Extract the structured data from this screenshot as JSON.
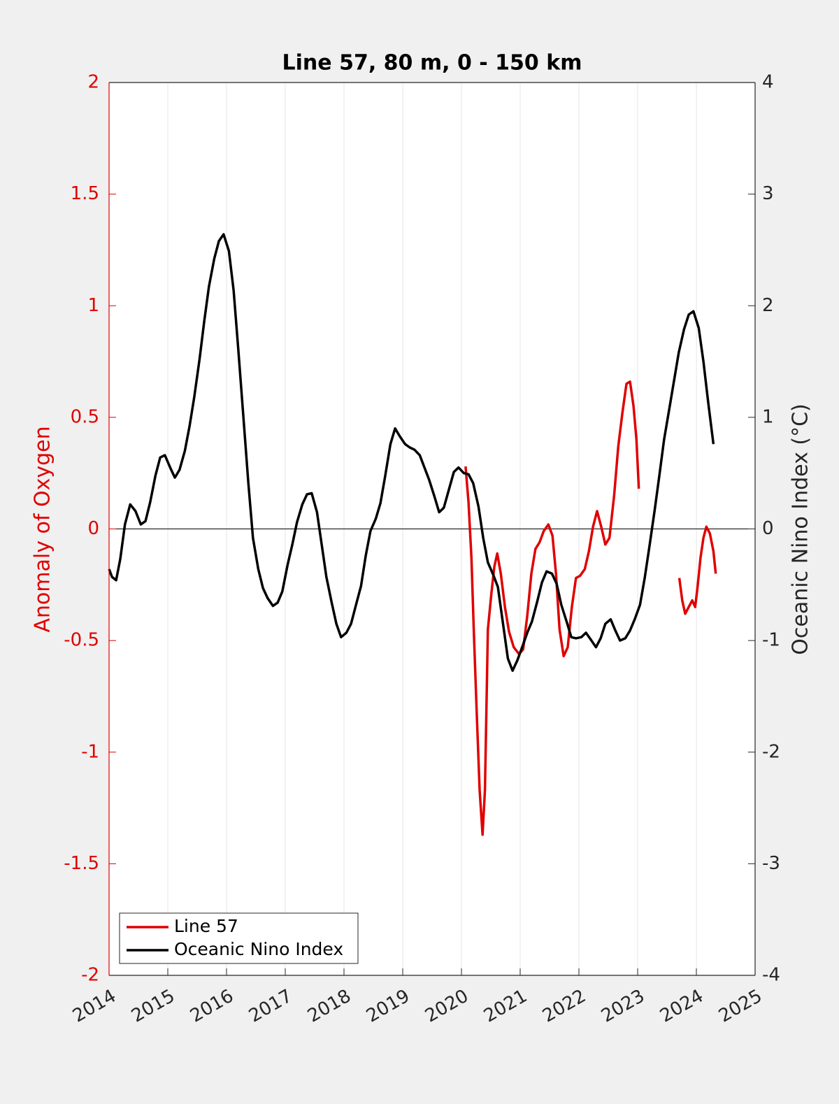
{
  "chart_data": {
    "type": "line",
    "title": "Line 57, 80 m, 0 - 150 km",
    "ylabel": "Anomaly of Oxygen",
    "y2label": "Oceanic Nino Index (°C)",
    "xlim": [
      2014,
      2025
    ],
    "xticks": [
      2014,
      2015,
      2016,
      2017,
      2018,
      2019,
      2020,
      2021,
      2022,
      2023,
      2024,
      2025
    ],
    "ylim": [
      -2,
      2
    ],
    "yticks": [
      -2,
      -1.5,
      -1,
      -0.5,
      0,
      0.5,
      1,
      1.5,
      2
    ],
    "y2lim": [
      -4,
      4
    ],
    "y2ticks": [
      -4,
      -3,
      -2,
      -1,
      0,
      1,
      2,
      3,
      4
    ],
    "grid": "x",
    "zero_line": true,
    "ylabel_color": "#e00000",
    "legend": "lower left",
    "series": [
      {
        "name": "Line 57",
        "color": "#e00000",
        "axis": "y",
        "x": [
          2020.07,
          2020.12,
          2020.17,
          2020.21,
          2020.26,
          2020.31,
          2020.36,
          2020.4,
          2020.45,
          2020.51,
          2020.56,
          2020.61,
          2020.67,
          2020.74,
          2020.81,
          2020.89,
          2020.98,
          2021.05,
          2021.12,
          2021.19,
          2021.26,
          2021.33,
          2021.4,
          2021.48,
          2021.55,
          2021.61,
          2021.67,
          2021.74,
          2021.81,
          2021.88,
          2021.95,
          2022.02,
          2022.1,
          2022.17,
          2022.24,
          2022.31,
          2022.38,
          2022.45,
          2022.52,
          2022.6,
          2022.67,
          2022.74,
          2022.81,
          2022.87,
          2022.93,
          2022.98,
          2023.02,
          2023.4,
          2023.71,
          2023.76,
          2023.81,
          2023.87,
          2023.93,
          2023.98,
          2024.02,
          2024.07,
          2024.12,
          2024.17,
          2024.23,
          2024.29,
          2024.33
        ],
        "values": [
          0.28,
          0.12,
          -0.13,
          -0.45,
          -0.82,
          -1.17,
          -1.37,
          -1.17,
          -0.45,
          -0.29,
          -0.17,
          -0.11,
          -0.2,
          -0.35,
          -0.46,
          -0.53,
          -0.56,
          -0.54,
          -0.39,
          -0.2,
          -0.09,
          -0.06,
          -0.01,
          0.02,
          -0.03,
          -0.2,
          -0.45,
          -0.57,
          -0.53,
          -0.35,
          -0.22,
          -0.21,
          -0.18,
          -0.1,
          0.01,
          0.08,
          0.01,
          -0.07,
          -0.04,
          0.15,
          0.37,
          0.52,
          0.65,
          0.66,
          0.55,
          0.4,
          0.18,
          null,
          -0.22,
          -0.32,
          -0.38,
          -0.35,
          -0.32,
          -0.35,
          -0.26,
          -0.13,
          -0.04,
          0.01,
          -0.02,
          -0.1,
          -0.2
        ]
      },
      {
        "name": "Oceanic Nino Index",
        "color": "#000000",
        "axis": "y2",
        "x": [
          2014.0,
          2014.05,
          2014.12,
          2014.19,
          2014.27,
          2014.36,
          2014.45,
          2014.54,
          2014.62,
          2014.7,
          2014.79,
          2014.87,
          2014.95,
          2015.04,
          2015.12,
          2015.2,
          2015.29,
          2015.37,
          2015.45,
          2015.54,
          2015.62,
          2015.7,
          2015.79,
          2015.87,
          2015.95,
          2016.04,
          2016.12,
          2016.2,
          2016.29,
          2016.37,
          2016.45,
          2016.54,
          2016.62,
          2016.7,
          2016.79,
          2016.87,
          2016.95,
          2017.04,
          2017.12,
          2017.2,
          2017.29,
          2017.37,
          2017.45,
          2017.54,
          2017.62,
          2017.7,
          2017.79,
          2017.87,
          2017.95,
          2018.04,
          2018.12,
          2018.2,
          2018.29,
          2018.37,
          2018.45,
          2018.54,
          2018.62,
          2018.7,
          2018.79,
          2018.87,
          2018.95,
          2019.04,
          2019.12,
          2019.2,
          2019.29,
          2019.37,
          2019.45,
          2019.54,
          2019.62,
          2019.7,
          2019.79,
          2019.87,
          2019.95,
          2020.04,
          2020.12,
          2020.2,
          2020.29,
          2020.37,
          2020.45,
          2020.54,
          2020.62,
          2020.7,
          2020.79,
          2020.87,
          2020.95,
          2021.04,
          2021.12,
          2021.2,
          2021.29,
          2021.37,
          2021.45,
          2021.54,
          2021.62,
          2021.7,
          2021.79,
          2021.87,
          2021.95,
          2022.04,
          2022.12,
          2022.2,
          2022.29,
          2022.37,
          2022.45,
          2022.54,
          2022.62,
          2022.7,
          2022.79,
          2022.87,
          2022.95,
          2023.04,
          2023.12,
          2023.2,
          2023.29,
          2023.37,
          2023.45,
          2023.54,
          2023.62,
          2023.7,
          2023.79,
          2023.87,
          2023.95,
          2024.04,
          2024.12,
          2024.2,
          2024.29
        ],
        "values": [
          -0.36,
          -0.43,
          -0.46,
          -0.27,
          0.04,
          0.22,
          0.16,
          0.04,
          0.07,
          0.24,
          0.48,
          0.64,
          0.66,
          0.55,
          0.46,
          0.53,
          0.7,
          0.92,
          1.18,
          1.52,
          1.86,
          2.17,
          2.42,
          2.58,
          2.64,
          2.49,
          2.14,
          1.61,
          0.98,
          0.42,
          -0.08,
          -0.36,
          -0.53,
          -0.62,
          -0.69,
          -0.66,
          -0.56,
          -0.32,
          -0.14,
          0.06,
          0.22,
          0.31,
          0.32,
          0.15,
          -0.14,
          -0.43,
          -0.66,
          -0.85,
          -0.97,
          -0.93,
          -0.85,
          -0.69,
          -0.51,
          -0.24,
          -0.02,
          0.09,
          0.23,
          0.47,
          0.76,
          0.9,
          0.83,
          0.76,
          0.73,
          0.71,
          0.66,
          0.55,
          0.44,
          0.29,
          0.15,
          0.19,
          0.36,
          0.51,
          0.55,
          0.5,
          0.49,
          0.41,
          0.2,
          -0.08,
          -0.3,
          -0.41,
          -0.52,
          -0.82,
          -1.16,
          -1.27,
          -1.18,
          -1.05,
          -0.93,
          -0.83,
          -0.65,
          -0.48,
          -0.38,
          -0.4,
          -0.49,
          -0.68,
          -0.83,
          -0.97,
          -0.98,
          -0.97,
          -0.93,
          -0.99,
          -1.06,
          -0.98,
          -0.85,
          -0.81,
          -0.91,
          -1.0,
          -0.98,
          -0.91,
          -0.81,
          -0.68,
          -0.44,
          -0.16,
          0.17,
          0.48,
          0.8,
          1.08,
          1.33,
          1.58,
          1.79,
          1.92,
          1.95,
          1.8,
          1.5,
          1.14,
          0.76
        ]
      }
    ]
  }
}
